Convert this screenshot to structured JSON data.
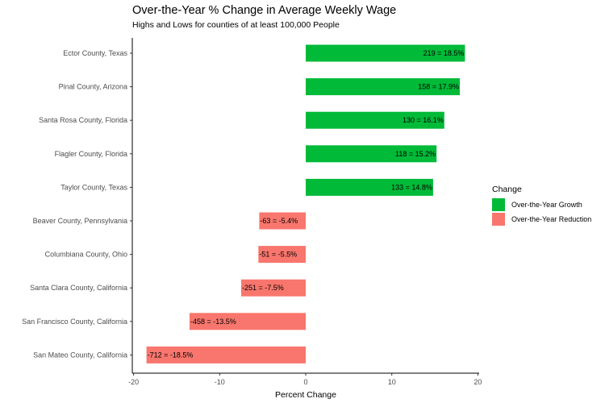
{
  "chart_data": {
    "type": "bar",
    "orientation": "horizontal",
    "title": "Over-the-Year % Change in Average Weekly Wage",
    "subtitle": "Highs and Lows for counties of at least 100,000 People",
    "xlabel": "Percent Change",
    "ylabel": "",
    "xlim": [
      -20,
      20
    ],
    "xticks": [
      "-20",
      "-10",
      "0",
      "10",
      "20"
    ],
    "grid": false,
    "legend": {
      "title": "Change",
      "position": "right",
      "items": [
        {
          "label": "Over-the-Year Growth",
          "color": "#00ba38"
        },
        {
          "label": "Over-the-Year Reduction",
          "color": "#f8766d"
        }
      ]
    },
    "categories": [
      "Ector County, Texas",
      "Pinal County, Arizona",
      "Santa Rosa County, Florida",
      "Flagler County, Florida",
      "Taylor County, Texas",
      "Beaver County, Pennsylvania",
      "Columbiana County, Ohio",
      "Santa Clara County, California",
      "San Francisco County, California",
      "San Mateo County, California"
    ],
    "values": [
      18.5,
      17.9,
      16.1,
      15.2,
      14.8,
      -5.4,
      -5.5,
      -7.5,
      -13.5,
      -18.5
    ],
    "labels": [
      "219 = 18.5%",
      "158 = 17.9%",
      "130 = 16.1%",
      "118 = 15.2%",
      "133 = 14.8%",
      "-63 = -5.4%",
      "-51 = -5.5%",
      "-251 = -7.5%",
      "-458 = -13.5%",
      "-712 = -18.5%"
    ]
  }
}
